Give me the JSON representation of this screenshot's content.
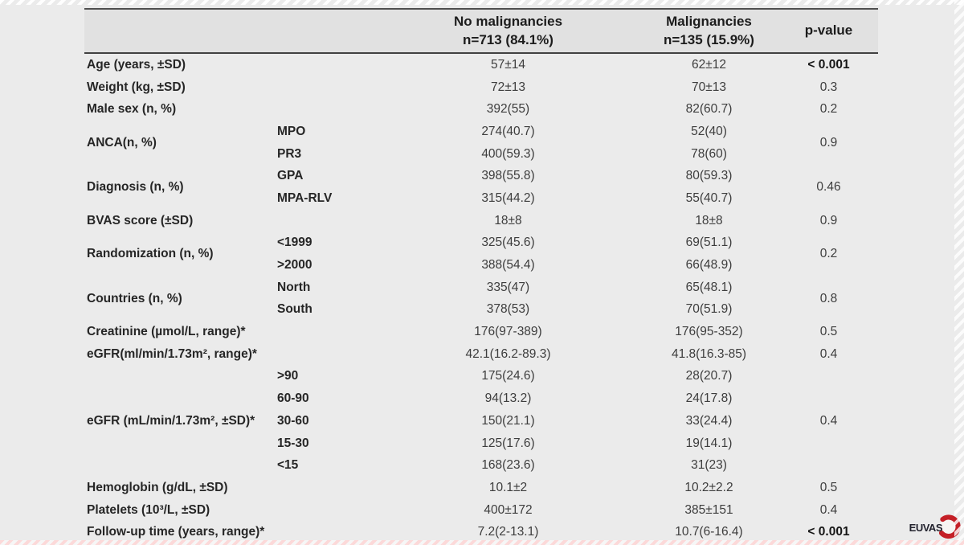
{
  "page": {
    "background": "#ebebeb",
    "header_bg": "#e1e1e1",
    "rule_color": "#4f4f4f"
  },
  "table": {
    "header": {
      "group1_line1": "No malignancies",
      "group1_line2": "n=713 (84.1%)",
      "group2_line1": "Malignancies",
      "group2_line2": "n=135 (15.9%)",
      "p": "p-value"
    },
    "groups": [
      {
        "label": "Age (years, ±SD)",
        "rows": [
          {
            "sub": "",
            "v1": "57±14",
            "v2": "62±12"
          }
        ],
        "p": "< 0.001",
        "p_bold": true
      },
      {
        "label": "Weight (kg, ±SD)",
        "rows": [
          {
            "sub": "",
            "v1": "72±13",
            "v2": "70±13"
          }
        ],
        "p": "0.3",
        "p_bold": false
      },
      {
        "label": "Male sex (n, %)",
        "rows": [
          {
            "sub": "",
            "v1": "392(55)",
            "v2": "82(60.7)"
          }
        ],
        "p": "0.2",
        "p_bold": false
      },
      {
        "label": "ANCA(n, %)",
        "rows": [
          {
            "sub": "MPO",
            "v1": "274(40.7)",
            "v2": "52(40)"
          },
          {
            "sub": "PR3",
            "v1": "400(59.3)",
            "v2": "78(60)"
          }
        ],
        "p": "0.9",
        "p_bold": false
      },
      {
        "label": "Diagnosis (n, %)",
        "rows": [
          {
            "sub": "GPA",
            "v1": "398(55.8)",
            "v2": "80(59.3)"
          },
          {
            "sub": "MPA-RLV",
            "v1": "315(44.2)",
            "v2": "55(40.7)"
          }
        ],
        "p": "0.46",
        "p_bold": false
      },
      {
        "label": "BVAS score (±SD)",
        "rows": [
          {
            "sub": "",
            "v1": "18±8",
            "v2": "18±8"
          }
        ],
        "p": "0.9",
        "p_bold": false
      },
      {
        "label": "Randomization (n, %)",
        "rows": [
          {
            "sub": "<1999",
            "v1": "325(45.6)",
            "v2": "69(51.1)"
          },
          {
            "sub": ">2000",
            "v1": "388(54.4)",
            "v2": "66(48.9)"
          }
        ],
        "p": "0.2",
        "p_bold": false
      },
      {
        "label": "Countries (n, %)",
        "rows": [
          {
            "sub": "North",
            "v1": "335(47)",
            "v2": "65(48.1)"
          },
          {
            "sub": "South",
            "v1": "378(53)",
            "v2": "70(51.9)"
          }
        ],
        "p": "0.8",
        "p_bold": false
      },
      {
        "label": "Creatinine (µmol/L, range)*",
        "rows": [
          {
            "sub": "",
            "v1": "176(97-389)",
            "v2": "176(95-352)"
          }
        ],
        "p": "0.5",
        "p_bold": false
      },
      {
        "label": "eGFR(ml/min/1.73m², range)*",
        "rows": [
          {
            "sub": "",
            "v1": "42.1(16.2-89.3)",
            "v2": "41.8(16.3-85)"
          }
        ],
        "p": "0.4",
        "p_bold": false
      },
      {
        "label": "eGFR (mL/min/1.73m², ±SD)*",
        "rows": [
          {
            "sub": ">90",
            "v1": "175(24.6)",
            "v2": "28(20.7)"
          },
          {
            "sub": "60-90",
            "v1": "94(13.2)",
            "v2": "24(17.8)"
          },
          {
            "sub": "30-60",
            "v1": "150(21.1)",
            "v2": "33(24.4)"
          },
          {
            "sub": "15-30",
            "v1": "125(17.6)",
            "v2": "19(14.1)"
          },
          {
            "sub": "<15",
            "v1": "168(23.6)",
            "v2": "31(23)"
          }
        ],
        "p": "0.4",
        "p_bold": false
      },
      {
        "label": "Hemoglobin (g/dL, ±SD)",
        "rows": [
          {
            "sub": "",
            "v1": "10.1±2",
            "v2": "10.2±2.2"
          }
        ],
        "p": "0.5",
        "p_bold": false
      },
      {
        "label": "Platelets (10³/L, ±SD)",
        "rows": [
          {
            "sub": "",
            "v1": "400±172",
            "v2": "385±151"
          }
        ],
        "p": "0.4",
        "p_bold": false
      },
      {
        "label": "Follow-up time (years, range)*",
        "rows": [
          {
            "sub": "",
            "v1": "7.2(2-13.1)",
            "v2": "10.7(6-16.4)"
          }
        ],
        "p": "< 0.001",
        "p_bold": true
      }
    ]
  },
  "logo": {
    "text": "EUVAS",
    "accent": "#c41f26"
  }
}
